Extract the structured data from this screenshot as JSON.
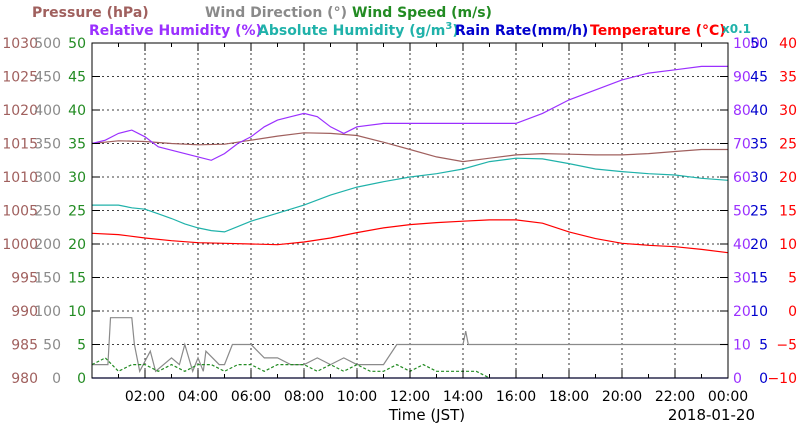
{
  "chart_data": {
    "type": "line",
    "xlabel": "Time (JST)",
    "date_label": "2018-01-20",
    "x_tick_labels": [
      "02:00",
      "04:00",
      "06:00",
      "08:00",
      "10:00",
      "12:00",
      "14:00",
      "16:00",
      "18:00",
      "20:00",
      "22:00",
      "00:00"
    ],
    "xlim": [
      0,
      24
    ],
    "grid": true,
    "legend_placement": "top",
    "legend": [
      {
        "text": "Pressure (hPa)",
        "color": "#a0605e"
      },
      {
        "text": "Wind Direction (°)",
        "color": "#8a8a8a"
      },
      {
        "text": "Wind Speed (m/s)",
        "color": "#228b22"
      },
      {
        "text": "Relative Humidity (%)",
        "color": "#9b30ff"
      },
      {
        "text": "Absolute Humidity (g/m",
        "sup": "3",
        "close": ")",
        "color": "#20b2aa"
      },
      {
        "text": "Rain Rate(mm/h)",
        "color": "#0000cd"
      },
      {
        "text": "Temperature (°C)",
        "color": "#ff0000"
      }
    ],
    "rain_scale_note": "x0.1",
    "axes": {
      "pressure": {
        "color": "#a0605e",
        "ylim": [
          980,
          1030
        ],
        "ticks": [
          "1030",
          "1025",
          "1020",
          "1015",
          "1010",
          "1005",
          "1000",
          "995",
          "990",
          "985",
          "980"
        ]
      },
      "wind_direction": {
        "color": "#8a8a8a",
        "ylim": [
          0,
          500
        ],
        "ticks": [
          "500",
          "450",
          "400",
          "350",
          "300",
          "250",
          "200",
          "150",
          "100",
          "50",
          "0"
        ]
      },
      "wind_speed": {
        "color": "#228b22",
        "ylim": [
          0,
          50
        ],
        "ticks": [
          "50",
          "45",
          "40",
          "35",
          "30",
          "25",
          "20",
          "15",
          "10",
          "5",
          "0"
        ]
      },
      "relative_humidity": {
        "color": "#9b30ff",
        "ylim": [
          0,
          100
        ],
        "ticks": [
          "100",
          "90",
          "80",
          "70",
          "60",
          "50",
          "40",
          "30",
          "20",
          "10",
          "0"
        ]
      },
      "rain_rate": {
        "color": "#0000cd",
        "ylim": [
          0,
          50
        ],
        "ticks": [
          "50",
          "45",
          "40",
          "35",
          "30",
          "25",
          "20",
          "15",
          "10",
          "5",
          "0"
        ]
      },
      "temperature": {
        "color": "#ff0000",
        "ylim": [
          -10,
          40
        ],
        "ticks": [
          "40",
          "35",
          "30",
          "25",
          "20",
          "15",
          "10",
          "5",
          "0",
          "−5",
          "−10"
        ]
      }
    },
    "series": [
      {
        "name": "Pressure (hPa)",
        "axis": "pressure",
        "color": "#a0605e",
        "x": [
          0,
          1,
          2,
          3,
          4,
          5,
          6,
          7,
          8,
          9,
          10,
          11,
          12,
          13,
          14,
          15,
          16,
          17,
          18,
          19,
          20,
          21,
          22,
          23,
          24
        ],
        "y": [
          1015.0,
          1015.4,
          1015.3,
          1015.0,
          1014.8,
          1014.9,
          1015.5,
          1016.1,
          1016.6,
          1016.5,
          1016.2,
          1015.2,
          1014.1,
          1013.0,
          1012.3,
          1012.8,
          1013.3,
          1013.5,
          1013.4,
          1013.3,
          1013.3,
          1013.5,
          1013.8,
          1014.1,
          1014.1
        ]
      },
      {
        "name": "Relative Humidity (%)",
        "axis": "relative_humidity",
        "color": "#9b30ff",
        "x": [
          0,
          0.5,
          1,
          1.5,
          2,
          2.5,
          3,
          3.5,
          4,
          4.5,
          5,
          5.5,
          6,
          6.5,
          7,
          7.5,
          8,
          8.5,
          9,
          9.5,
          10,
          11,
          12,
          13,
          14,
          15,
          16,
          17,
          18,
          19,
          20,
          21,
          22,
          23,
          24
        ],
        "y": [
          70,
          71,
          73,
          74,
          72,
          69,
          68,
          67,
          66,
          65,
          67,
          70,
          72,
          75,
          77,
          78,
          79,
          78,
          75,
          73,
          75,
          76,
          76,
          76,
          76,
          76,
          76,
          79,
          83,
          86,
          89,
          91,
          92,
          93,
          93
        ]
      },
      {
        "name": "Absolute Humidity (g/m³)",
        "axis": "wind_speed",
        "color": "#20b2aa",
        "x": [
          0,
          1,
          1.5,
          2,
          2.5,
          3,
          3.5,
          4,
          4.5,
          5,
          5.5,
          6,
          7,
          8,
          9,
          10,
          11,
          12,
          13,
          14,
          15,
          16,
          17,
          18,
          19,
          20,
          21,
          22,
          23,
          24
        ],
        "y": [
          25.8,
          25.8,
          25.4,
          25.2,
          24.5,
          23.8,
          23.0,
          22.4,
          22.0,
          21.8,
          22.6,
          23.4,
          24.6,
          25.8,
          27.3,
          28.5,
          29.3,
          30.0,
          30.5,
          31.2,
          32.3,
          32.8,
          32.7,
          32.0,
          31.2,
          30.8,
          30.5,
          30.3,
          29.8,
          29.5
        ]
      },
      {
        "name": "Temperature (°C)",
        "axis": "temperature",
        "color": "#ff0000",
        "x": [
          0,
          1,
          2,
          3,
          4,
          5,
          6,
          7,
          8,
          9,
          10,
          11,
          12,
          13,
          14,
          15,
          16,
          17,
          18,
          19,
          20,
          21,
          22,
          23,
          24
        ],
        "y": [
          11.6,
          11.4,
          10.9,
          10.5,
          10.2,
          10.1,
          10.0,
          9.9,
          10.3,
          10.9,
          11.7,
          12.4,
          12.9,
          13.2,
          13.4,
          13.6,
          13.6,
          13.1,
          11.8,
          10.8,
          10.1,
          9.8,
          9.6,
          9.2,
          8.7
        ]
      },
      {
        "name": "Wind Direction (°)",
        "axis": "wind_direction",
        "color": "#8a8a8a",
        "x": [
          0,
          0.6,
          0.7,
          1.5,
          1.6,
          1.8,
          2.2,
          2.4,
          3,
          3.3,
          3.5,
          3.8,
          4.0,
          4.2,
          4.3,
          4.8,
          5.0,
          5.3,
          6,
          6.5,
          7,
          7.5,
          8,
          8.5,
          9,
          9.5,
          10,
          10.5,
          11,
          11.5,
          12,
          12.5,
          13,
          13.5,
          14,
          14.1,
          14.2,
          14.3,
          14.5,
          15,
          16,
          17,
          18,
          19,
          20,
          21,
          22,
          23,
          24
        ],
        "y": [
          20,
          20,
          90,
          90,
          50,
          10,
          40,
          10,
          30,
          20,
          50,
          10,
          30,
          10,
          40,
          20,
          20,
          50,
          50,
          30,
          30,
          20,
          20,
          30,
          20,
          30,
          20,
          20,
          20,
          50,
          50,
          50,
          50,
          50,
          50,
          70,
          50,
          50,
          50,
          50,
          50,
          50,
          50,
          50,
          50,
          50,
          50,
          50,
          50
        ]
      },
      {
        "name": "Wind Speed (m/s)",
        "axis": "wind_speed",
        "color": "#228b22",
        "x": [
          0,
          0.5,
          1,
          1.5,
          2,
          2.5,
          3,
          3.5,
          4,
          4.5,
          5,
          5.5,
          6,
          6.5,
          7,
          7.5,
          8,
          8.5,
          9,
          9.5,
          10,
          10.5,
          11,
          11.5,
          12,
          12.5,
          13,
          13.5,
          14,
          14.5,
          15
        ],
        "y": [
          2,
          3,
          1,
          2,
          2,
          1,
          2,
          1,
          2,
          2,
          1,
          2,
          2,
          1,
          2,
          2,
          2,
          1,
          2,
          1,
          2,
          1,
          1,
          2,
          1,
          2,
          1,
          1,
          1,
          1,
          0
        ]
      },
      {
        "name": "Rain Rate(mm/h)",
        "axis": "rain_rate",
        "color": "#0000cd",
        "x": [
          0,
          24
        ],
        "y": [
          0,
          0
        ]
      }
    ]
  }
}
